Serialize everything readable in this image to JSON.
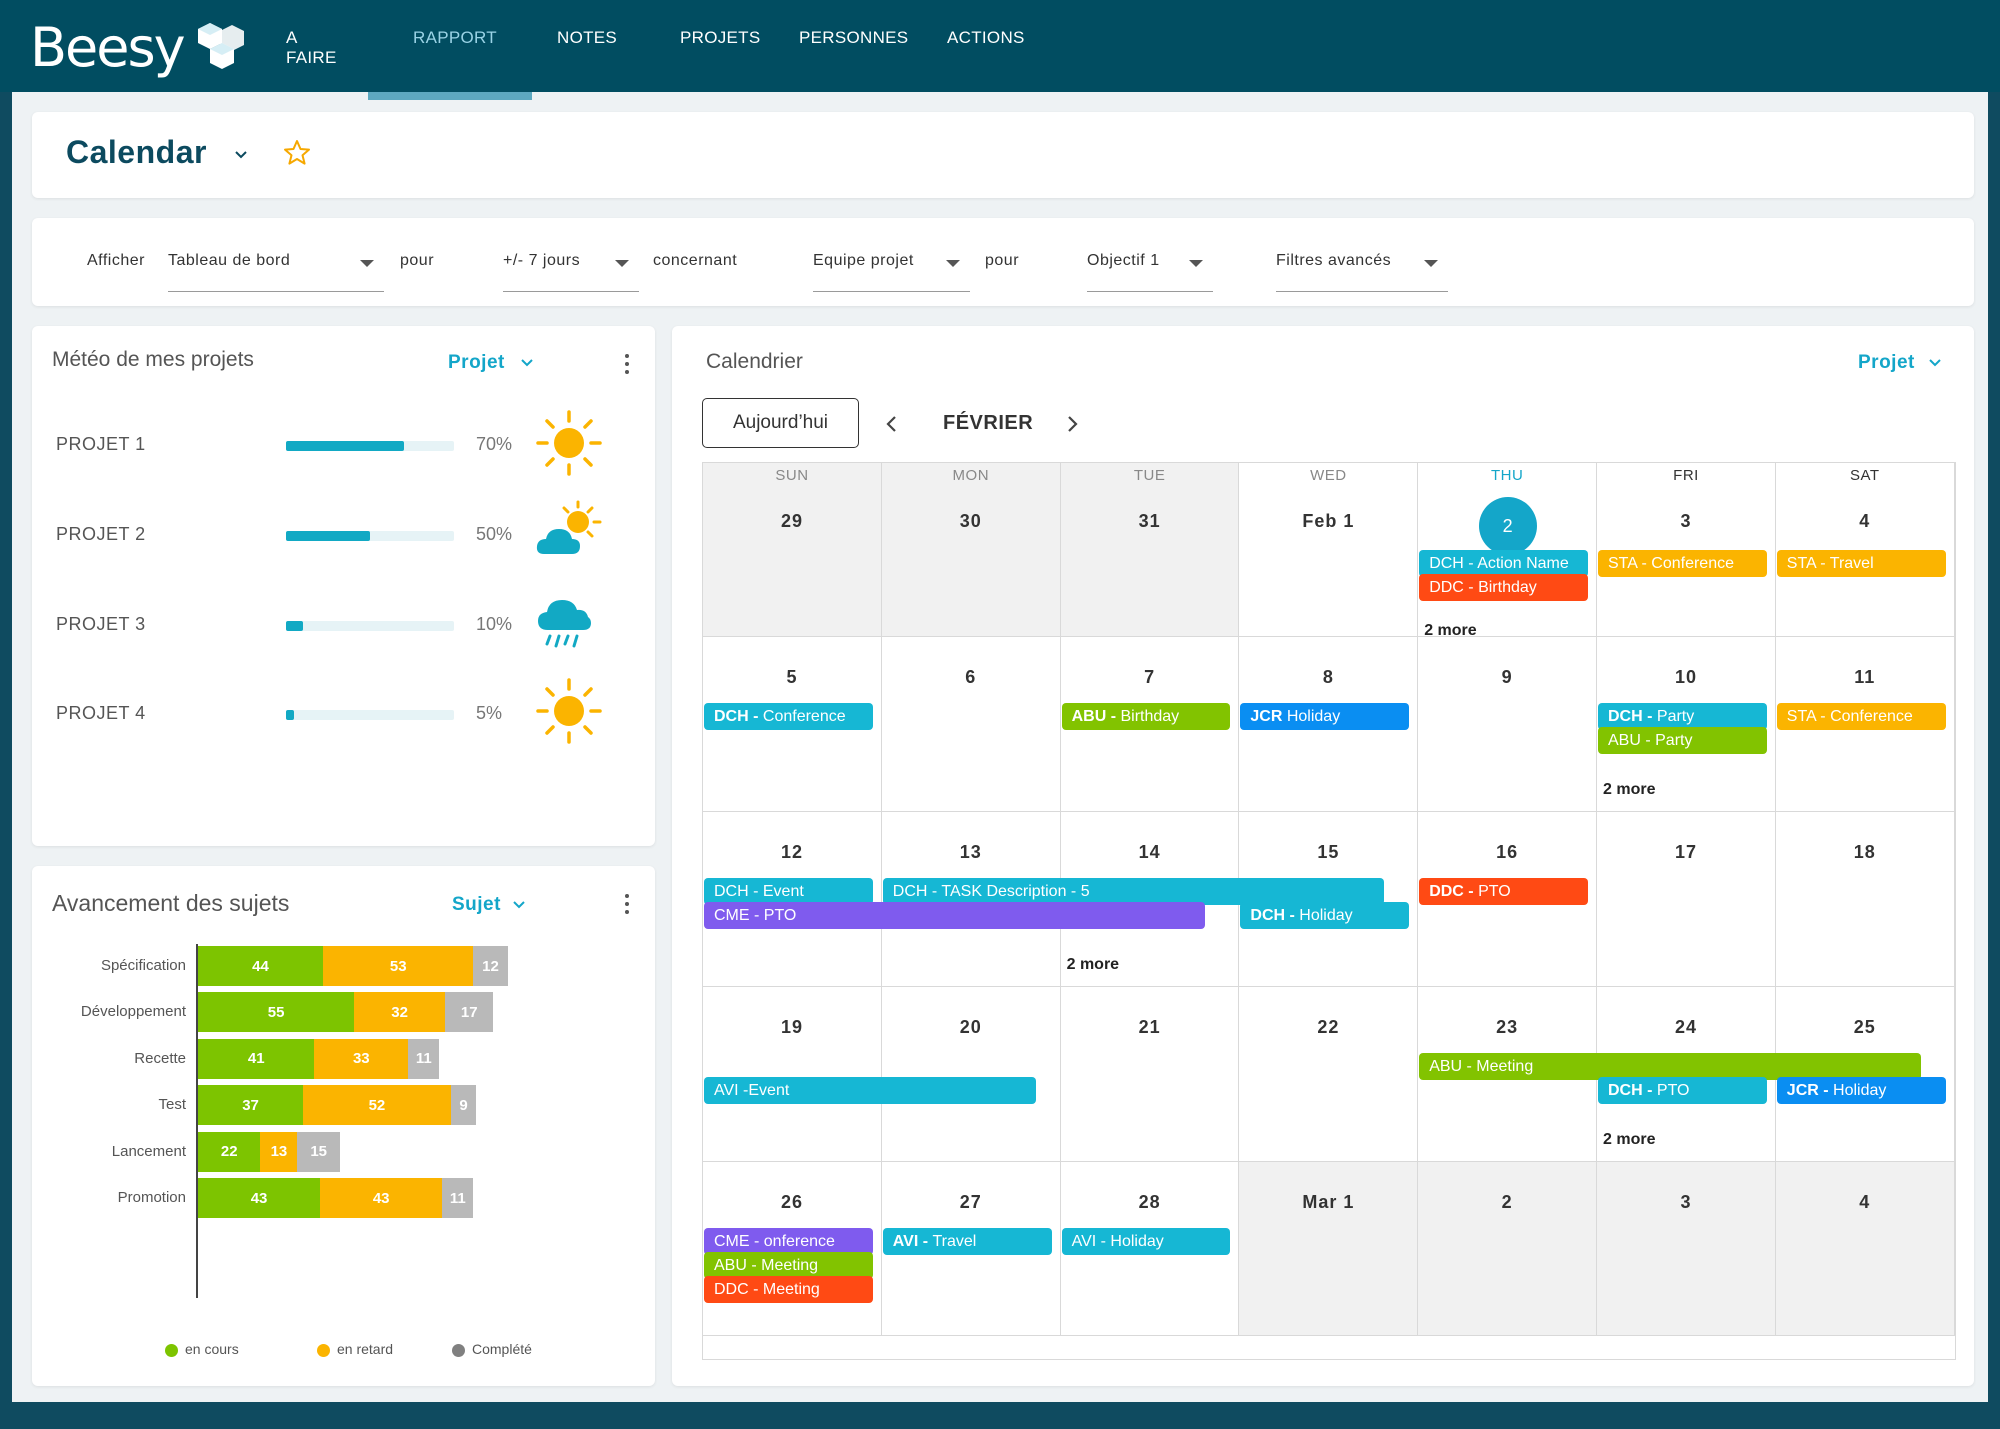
{
  "app": {
    "brand": "Beesy",
    "nav": [
      "A FAIRE",
      "RAPPORT",
      "NOTES",
      "PROJETS",
      "PERSONNES",
      "ACTIONS"
    ],
    "active_nav": "RAPPORT"
  },
  "page": {
    "title": "Calendar"
  },
  "filters": {
    "afficher_label": "Afficher",
    "afficher_value": "Tableau de bord",
    "pour_label": "pour",
    "period_value": "+/- 7 jours",
    "concernant_label": "concernant",
    "team_value": "Equipe projet",
    "pour2_label": "pour",
    "objective_value": "Objectif 1",
    "advanced_value": "Filtres avancés"
  },
  "weather": {
    "title": "Météo de mes projets",
    "link": "Projet",
    "projects": [
      {
        "name": "PROJET 1",
        "pct_label": "70%",
        "progress": 0.7,
        "icon": "sun-icon"
      },
      {
        "name": "PROJET 2",
        "pct_label": "50%",
        "progress": 0.5,
        "icon": "sun-cloud-icon"
      },
      {
        "name": "PROJET 3",
        "pct_label": "10%",
        "progress": 0.1,
        "icon": "rain-cloud-icon"
      },
      {
        "name": "PROJET 4",
        "pct_label": "5%",
        "progress": 0.05,
        "icon": "sun-icon"
      }
    ]
  },
  "progress_chart": {
    "title": "Avancement des sujets",
    "link": "Sujet",
    "legend": [
      "en cours",
      "en retard",
      "Complété"
    ],
    "colors": {
      "en_cours": "#7dc400",
      "en_retard": "#fbb400",
      "complete": "#b9b9b9"
    }
  },
  "chart_data": {
    "type": "bar",
    "orientation": "horizontal",
    "stacked": true,
    "categories": [
      "Spécification",
      "Développement",
      "Recette",
      "Test",
      "Lancement",
      "Promotion"
    ],
    "series": [
      {
        "name": "en cours",
        "values": [
          44,
          55,
          41,
          37,
          22,
          43
        ]
      },
      {
        "name": "en retard",
        "values": [
          53,
          32,
          33,
          52,
          13,
          43
        ]
      },
      {
        "name": "Complété",
        "values": [
          12,
          17,
          11,
          9,
          15,
          11
        ]
      }
    ],
    "legend_position": "bottom"
  },
  "calendar": {
    "title": "Calendrier",
    "link": "Projet",
    "today_button": "Aujourd’hui",
    "month": "FÉVRIER",
    "weekdays": [
      "SUN",
      "MON",
      "TUE",
      "WED",
      "THU",
      "FRI",
      "SAT"
    ],
    "today_index": 4,
    "weeks": [
      [
        "29",
        "30",
        "31",
        "Feb 1",
        "2",
        "3",
        "4"
      ],
      [
        "5",
        "6",
        "7",
        "8",
        "9",
        "10",
        "11"
      ],
      [
        "12",
        "13",
        "14",
        "15",
        "16",
        "17",
        "18"
      ],
      [
        "19",
        "20",
        "21",
        "22",
        "23",
        "24",
        "25"
      ],
      [
        "26",
        "27",
        "28",
        "Mar 1",
        "2",
        "3",
        "4"
      ]
    ],
    "more_label": "2 more",
    "event_colors": {
      "cyan": "#16b7d4",
      "red": "#ff4a14",
      "orange": "#fbb400",
      "green": "#82c300",
      "blue": "#0a8ef2",
      "purple": "#7f5bee"
    },
    "events": [
      {
        "bold": "",
        "text": "DCH -  Action Name",
        "color": "cyan"
      },
      {
        "bold": "",
        "text": "DDC - Birthday",
        "color": "red"
      },
      {
        "bold": "",
        "text": "STA - Conference",
        "color": "orange"
      },
      {
        "bold": "",
        "text": "STA -  Travel",
        "color": "orange"
      },
      {
        "bold": "DCH - ",
        "text": "Conference",
        "color": "cyan"
      },
      {
        "bold": "ABU - ",
        "text": "Birthday",
        "color": "green"
      },
      {
        "bold": "JCR ",
        "text": "Holiday",
        "color": "blue"
      },
      {
        "bold": "DCH - ",
        "text": "Party",
        "color": "cyan"
      },
      {
        "bold": "",
        "text": "ABU - Party",
        "color": "green"
      },
      {
        "bold": "",
        "text": "STA - Conference",
        "color": "orange"
      },
      {
        "bold": "",
        "text": "DCH - Event",
        "color": "cyan"
      },
      {
        "bold": "",
        "text": "DCH - TASK Description -  5",
        "color": "cyan"
      },
      {
        "bold": "",
        "text": "CME - PTO",
        "color": "purple"
      },
      {
        "bold": "DCH - ",
        "text": "Holiday",
        "color": "cyan"
      },
      {
        "bold": "DDC - ",
        "text": "PTO",
        "color": "red"
      },
      {
        "bold": "",
        "text": "ABU  - Meeting",
        "color": "green"
      },
      {
        "bold": "",
        "text": "AVI -Event",
        "color": "cyan"
      },
      {
        "bold": "DCH - ",
        "text": "PTO",
        "color": "cyan"
      },
      {
        "bold": "JCR - ",
        "text": "Holiday",
        "color": "blue"
      },
      {
        "bold": "",
        "text": "CME - onference",
        "color": "purple"
      },
      {
        "bold": "",
        "text": "ABU - Meeting",
        "color": "green"
      },
      {
        "bold": "",
        "text": "DDC - Meeting",
        "color": "red"
      },
      {
        "bold": "AVI - ",
        "text": "Travel",
        "color": "cyan"
      },
      {
        "bold": "",
        "text": "AVI - Holiday",
        "color": "cyan"
      }
    ]
  }
}
